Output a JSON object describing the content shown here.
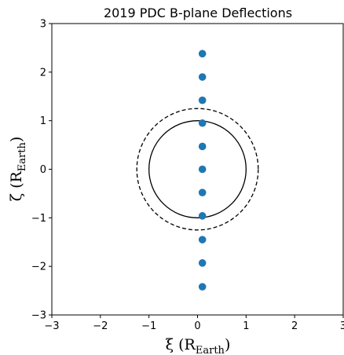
{
  "chart_data": {
    "type": "scatter",
    "title": "2019 PDC B-plane Deflections",
    "xlabel": {
      "symbol": "ξ",
      "open": " (R",
      "sub": "Earth",
      "close": ")"
    },
    "ylabel": {
      "symbol": "ζ",
      "open": " (R",
      "sub": "Earth",
      "close": ")"
    },
    "xlim": [
      -3,
      3
    ],
    "ylim": [
      -3,
      3
    ],
    "xticks": [
      -3,
      -2,
      -1,
      0,
      1,
      2,
      3
    ],
    "yticks": [
      -3,
      -2,
      -1,
      0,
      1,
      2,
      3
    ],
    "xtick_labels": [
      "−3",
      "−2",
      "−1",
      "0",
      "1",
      "2",
      "3"
    ],
    "ytick_labels": [
      "−3",
      "−2",
      "−1",
      "0",
      "1",
      "2",
      "3"
    ],
    "grid": false,
    "point_color": "#1f77b4",
    "points": [
      {
        "x": 0.1,
        "y": 2.38
      },
      {
        "x": 0.1,
        "y": 1.9
      },
      {
        "x": 0.1,
        "y": 1.42
      },
      {
        "x": 0.1,
        "y": 0.95
      },
      {
        "x": 0.1,
        "y": 0.47
      },
      {
        "x": 0.1,
        "y": 0.0
      },
      {
        "x": 0.1,
        "y": -0.48
      },
      {
        "x": 0.1,
        "y": -0.96
      },
      {
        "x": 0.1,
        "y": -1.45
      },
      {
        "x": 0.1,
        "y": -1.93
      },
      {
        "x": 0.1,
        "y": -2.42
      }
    ],
    "circles": [
      {
        "name": "earth-circle",
        "cx": 0.0,
        "cy": 0.0,
        "r": 1.0,
        "style": "solid"
      },
      {
        "name": "capture-circle",
        "cx": 0.0,
        "cy": 0.0,
        "r": 1.25,
        "style": "dashed"
      }
    ]
  }
}
